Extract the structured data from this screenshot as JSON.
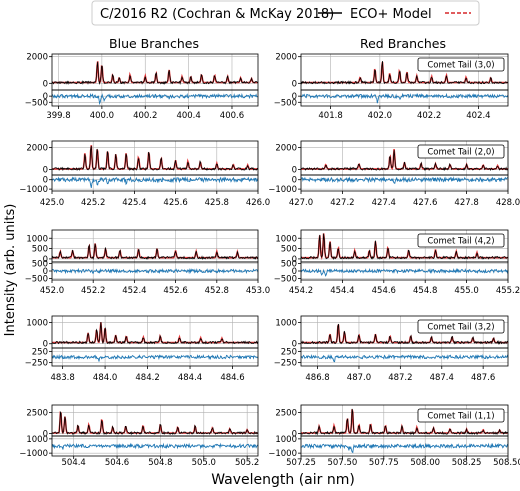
{
  "legend": {
    "title": "C/2016 R2 (Cochran & McKay 2018)",
    "entries": [
      {
        "label": "",
        "color": "#000000",
        "style": "solid"
      },
      {
        "label": "ECO+ Model",
        "color": "#d62728",
        "style": "dashed"
      }
    ]
  },
  "columns": {
    "left": "Blue Branches",
    "right": "Red Branches"
  },
  "ylabel": "Intensity (arb. units)",
  "xlabel": "Wavelength (air nm)",
  "colors": {
    "observed": "#000000",
    "model": "#e41a1c",
    "residual": "#1f77b4",
    "grid": "#b0b0b0"
  },
  "chart_data": [
    {
      "type": "line",
      "row": 0,
      "col": 0,
      "xlim": [
        399.77,
        400.72
      ],
      "xticks": [
        "399.8",
        "400.0",
        "400.2",
        "400.4",
        "400.6"
      ],
      "xtick_values": [
        399.8,
        400.0,
        400.2,
        400.4,
        400.6
      ],
      "spectrum_ylim": [
        -500,
        2200
      ],
      "spectrum_yticks": [
        "2000",
        "0"
      ],
      "spectrum_ytick_values": [
        2000,
        0
      ],
      "residual_ylim": [
        -800,
        500
      ],
      "residual_yticks": [
        "0",
        "−500"
      ],
      "residual_ytick_values": [
        0,
        -500
      ],
      "peaks": [
        [
          399.98,
          1650
        ],
        [
          400.0,
          1350
        ],
        [
          400.05,
          550
        ],
        [
          400.08,
          350
        ],
        [
          400.13,
          600
        ],
        [
          400.2,
          500
        ],
        [
          400.25,
          700
        ],
        [
          400.31,
          950
        ],
        [
          400.37,
          450
        ],
        [
          400.41,
          450
        ],
        [
          400.46,
          600
        ],
        [
          400.52,
          550
        ],
        [
          400.58,
          450
        ],
        [
          400.64,
          350
        ],
        [
          400.69,
          300
        ]
      ],
      "dips": [
        [
          399.99,
          -650
        ],
        [
          400.01,
          -400
        ],
        [
          400.13,
          -200
        ],
        [
          400.31,
          -250
        ]
      ]
    },
    {
      "type": "line",
      "row": 0,
      "col": 1,
      "xlim": [
        401.68,
        402.52
      ],
      "annotation": "Comet Tail (3,0)",
      "xticks": [
        "401.8",
        "402.0",
        "402.2",
        "402.4"
      ],
      "xtick_values": [
        401.8,
        402.0,
        402.2,
        402.4
      ],
      "spectrum_ylim": [
        -500,
        2200
      ],
      "spectrum_yticks": [
        "2000",
        "0"
      ],
      "spectrum_ytick_values": [
        2000,
        0
      ],
      "residual_ylim": [
        -800,
        500
      ],
      "residual_yticks": [
        "0",
        "−500"
      ],
      "residual_ytick_values": [
        0,
        -500
      ],
      "peaks": [
        [
          401.92,
          400
        ],
        [
          401.98,
          1050
        ],
        [
          402.01,
          1600
        ],
        [
          402.04,
          700
        ],
        [
          402.08,
          900
        ],
        [
          402.11,
          800
        ],
        [
          402.15,
          500
        ],
        [
          402.21,
          450
        ],
        [
          402.27,
          550
        ],
        [
          402.35,
          400
        ],
        [
          402.45,
          350
        ]
      ],
      "dips": [
        [
          401.99,
          -450
        ],
        [
          402.08,
          -250
        ]
      ]
    },
    {
      "type": "line",
      "row": 1,
      "col": 0,
      "xlim": [
        425.0,
        426.0
      ],
      "xticks": [
        "425.0",
        "425.2",
        "425.4",
        "425.6",
        "425.8",
        "426.0"
      ],
      "xtick_values": [
        425.0,
        425.2,
        425.4,
        425.6,
        425.8,
        426.0
      ],
      "spectrum_ylim": [
        -500,
        2600
      ],
      "spectrum_yticks": [
        "2000",
        "0"
      ],
      "spectrum_ytick_values": [
        2000,
        0
      ],
      "residual_ylim": [
        -1200,
        500
      ],
      "residual_yticks": [
        "0",
        "−1000"
      ],
      "residual_ytick_values": [
        0,
        -1000
      ],
      "peaks": [
        [
          425.16,
          1450
        ],
        [
          425.19,
          2200
        ],
        [
          425.22,
          1900
        ],
        [
          425.27,
          1700
        ],
        [
          425.31,
          1350
        ],
        [
          425.36,
          1450
        ],
        [
          425.42,
          1100
        ],
        [
          425.47,
          1600
        ],
        [
          425.53,
          1000
        ],
        [
          425.6,
          800
        ],
        [
          425.66,
          700
        ],
        [
          425.72,
          650
        ],
        [
          425.8,
          500
        ],
        [
          425.88,
          400
        ],
        [
          425.95,
          350
        ]
      ],
      "dips": [
        [
          425.19,
          -950
        ],
        [
          425.22,
          -700
        ],
        [
          425.27,
          -400
        ],
        [
          425.36,
          -300
        ]
      ]
    },
    {
      "type": "line",
      "row": 1,
      "col": 1,
      "xlim": [
        427.0,
        428.0
      ],
      "annotation": "Comet Tail (2,0)",
      "xticks": [
        "427.0",
        "427.2",
        "427.4",
        "427.6",
        "427.8",
        "428.0"
      ],
      "xtick_values": [
        427.0,
        427.2,
        427.4,
        427.6,
        427.8,
        428.0
      ],
      "spectrum_ylim": [
        -500,
        2600
      ],
      "spectrum_yticks": [
        "2000",
        "0"
      ],
      "spectrum_ytick_values": [
        2000,
        0
      ],
      "residual_ylim": [
        -1200,
        500
      ],
      "residual_yticks": [
        "0",
        "−1000"
      ],
      "residual_ytick_values": [
        0,
        -1000
      ],
      "peaks": [
        [
          427.12,
          400
        ],
        [
          427.28,
          450
        ],
        [
          427.43,
          1200
        ],
        [
          427.45,
          1800
        ],
        [
          427.5,
          600
        ],
        [
          427.58,
          500
        ],
        [
          427.65,
          450
        ],
        [
          427.72,
          400
        ],
        [
          427.8,
          400
        ],
        [
          427.88,
          350
        ],
        [
          427.95,
          300
        ]
      ],
      "dips": [
        [
          427.45,
          -300
        ]
      ]
    },
    {
      "type": "line",
      "row": 2,
      "col": 0,
      "xlim": [
        452.0,
        453.0
      ],
      "xticks": [
        "452.0",
        "452.2",
        "452.4",
        "452.6",
        "452.8",
        "453.0"
      ],
      "xtick_values": [
        452.0,
        452.2,
        452.4,
        452.6,
        452.8,
        453.0
      ],
      "spectrum_ylim": [
        -150,
        1400
      ],
      "spectrum_yticks": [
        "1000",
        "500",
        "0"
      ],
      "spectrum_ytick_values": [
        1000,
        500,
        0
      ],
      "residual_ylim": [
        -600,
        600
      ],
      "residual_yticks": [
        "500",
        "0",
        "−500"
      ],
      "residual_ytick_values": [
        500,
        0,
        -500
      ],
      "peaks": [
        [
          452.04,
          300
        ],
        [
          452.1,
          350
        ],
        [
          452.18,
          600
        ],
        [
          452.21,
          700
        ],
        [
          452.26,
          450
        ],
        [
          452.33,
          350
        ],
        [
          452.42,
          400
        ],
        [
          452.51,
          450
        ],
        [
          452.6,
          350
        ],
        [
          452.7,
          300
        ],
        [
          452.8,
          300
        ],
        [
          452.9,
          280
        ]
      ],
      "dips": [
        [
          452.2,
          -150
        ]
      ]
    },
    {
      "type": "line",
      "row": 2,
      "col": 1,
      "xlim": [
        454.2,
        455.2
      ],
      "annotation": "Comet Tail (4,2)",
      "xticks": [
        "454.2",
        "454.4",
        "454.6",
        "454.8",
        "455.0",
        "455.2"
      ],
      "xtick_values": [
        454.2,
        454.4,
        454.6,
        454.8,
        455.0,
        455.2
      ],
      "spectrum_ylim": [
        -150,
        1400
      ],
      "spectrum_yticks": [
        "1000",
        "500",
        "0"
      ],
      "spectrum_ytick_values": [
        1000,
        500,
        0
      ],
      "residual_ylim": [
        -600,
        600
      ],
      "residual_yticks": [
        "500",
        "0",
        "−500"
      ],
      "residual_ytick_values": [
        500,
        0,
        -500
      ],
      "peaks": [
        [
          454.29,
          1100
        ],
        [
          454.31,
          1200
        ],
        [
          454.34,
          800
        ],
        [
          454.38,
          500
        ],
        [
          454.46,
          350
        ],
        [
          454.53,
          350
        ],
        [
          454.56,
          800
        ],
        [
          454.62,
          500
        ],
        [
          454.72,
          350
        ],
        [
          454.85,
          400
        ],
        [
          454.95,
          300
        ],
        [
          455.05,
          250
        ]
      ],
      "dips": [
        [
          454.3,
          -350
        ],
        [
          454.32,
          -250
        ]
      ]
    },
    {
      "type": "line",
      "row": 3,
      "col": 0,
      "xlim": [
        483.75,
        484.72
      ],
      "xticks": [
        "483.8",
        "484.0",
        "484.2",
        "484.4",
        "484.6"
      ],
      "xtick_values": [
        483.8,
        484.0,
        484.2,
        484.4,
        484.6
      ],
      "spectrum_ylim": [
        -200,
        1300
      ],
      "spectrum_yticks": [
        "1000",
        "0"
      ],
      "spectrum_ytick_values": [
        1000,
        0
      ],
      "residual_ylim": [
        -400,
        400
      ],
      "residual_yticks": [
        "250",
        "−250"
      ],
      "residual_ytick_values": [
        250,
        -250
      ],
      "peaks": [
        [
          483.92,
          450
        ],
        [
          483.96,
          600
        ],
        [
          483.98,
          950
        ],
        [
          484.0,
          700
        ],
        [
          484.05,
          350
        ],
        [
          484.1,
          300
        ],
        [
          484.18,
          250
        ],
        [
          484.26,
          300
        ],
        [
          484.35,
          250
        ],
        [
          484.45,
          220
        ],
        [
          484.55,
          200
        ]
      ],
      "dips": [
        [
          483.97,
          -150
        ]
      ]
    },
    {
      "type": "line",
      "row": 3,
      "col": 1,
      "xlim": [
        486.72,
        487.72
      ],
      "annotation": "Comet Tail (3,2)",
      "xticks": [
        "486.8",
        "487.0",
        "487.2",
        "487.4",
        "487.6"
      ],
      "xtick_values": [
        486.8,
        487.0,
        487.2,
        487.4,
        487.6
      ],
      "spectrum_ylim": [
        -200,
        1300
      ],
      "spectrum_yticks": [
        "1000",
        "0"
      ],
      "spectrum_ytick_values": [
        1000,
        0
      ],
      "residual_ylim": [
        -400,
        400
      ],
      "residual_yticks": [
        "250",
        "−250"
      ],
      "residual_ytick_values": [
        250,
        -250
      ],
      "peaks": [
        [
          486.86,
          400
        ],
        [
          486.9,
          900
        ],
        [
          486.93,
          500
        ],
        [
          487.0,
          350
        ],
        [
          487.08,
          400
        ],
        [
          487.15,
          300
        ],
        [
          487.25,
          300
        ],
        [
          487.35,
          250
        ],
        [
          487.45,
          250
        ],
        [
          487.55,
          220
        ],
        [
          487.65,
          200
        ]
      ],
      "dips": [
        [
          486.88,
          -200
        ]
      ]
    },
    {
      "type": "line",
      "row": 4,
      "col": 0,
      "xlim": [
        504.3,
        505.25
      ],
      "xticks": [
        "504.4",
        "504.6",
        "504.8",
        "505.0",
        "505.2"
      ],
      "xtick_values": [
        504.4,
        504.6,
        504.8,
        505.0,
        505.2
      ],
      "spectrum_ylim": [
        -300,
        3400
      ],
      "spectrum_yticks": [
        "2500",
        "0"
      ],
      "spectrum_ytick_values": [
        2500,
        0
      ],
      "residual_ylim": [
        -1400,
        1400
      ],
      "residual_yticks": [
        "1000",
        "−1000"
      ],
      "residual_ytick_values": [
        1000,
        -1000
      ],
      "peaks": [
        [
          504.34,
          2700
        ],
        [
          504.36,
          2000
        ],
        [
          504.42,
          900
        ],
        [
          504.47,
          1000
        ],
        [
          504.53,
          1700
        ],
        [
          504.58,
          700
        ],
        [
          504.64,
          800
        ],
        [
          504.72,
          900
        ],
        [
          504.8,
          1000
        ],
        [
          504.88,
          700
        ],
        [
          504.96,
          800
        ],
        [
          505.04,
          600
        ],
        [
          505.12,
          500
        ],
        [
          505.2,
          400
        ]
      ],
      "dips": [
        [
          504.35,
          -300
        ]
      ]
    },
    {
      "type": "line",
      "row": 4,
      "col": 1,
      "xlim": [
        507.25,
        508.5
      ],
      "annotation": "Comet Tail (1,1)",
      "xticks": [
        "507.25",
        "507.50",
        "507.75",
        "508.00",
        "508.25",
        "508.50"
      ],
      "xtick_values": [
        507.25,
        507.5,
        507.75,
        508.0,
        508.25,
        508.5
      ],
      "spectrum_ylim": [
        -300,
        3400
      ],
      "spectrum_yticks": [
        "2500",
        "0"
      ],
      "spectrum_ytick_values": [
        2500,
        0
      ],
      "residual_ylim": [
        -1400,
        1400
      ],
      "residual_yticks": [
        "1000",
        "−1000"
      ],
      "residual_ytick_values": [
        1000,
        -1000
      ],
      "peaks": [
        [
          507.36,
          800
        ],
        [
          507.45,
          900
        ],
        [
          507.53,
          1800
        ],
        [
          507.56,
          3000
        ],
        [
          507.6,
          1000
        ],
        [
          507.67,
          1100
        ],
        [
          507.76,
          900
        ],
        [
          507.86,
          800
        ],
        [
          507.95,
          700
        ],
        [
          508.05,
          600
        ],
        [
          508.15,
          500
        ],
        [
          508.25,
          450
        ],
        [
          508.35,
          400
        ],
        [
          508.45,
          350
        ]
      ],
      "dips": [
        [
          507.56,
          -1100
        ],
        [
          507.54,
          -400
        ]
      ]
    }
  ]
}
